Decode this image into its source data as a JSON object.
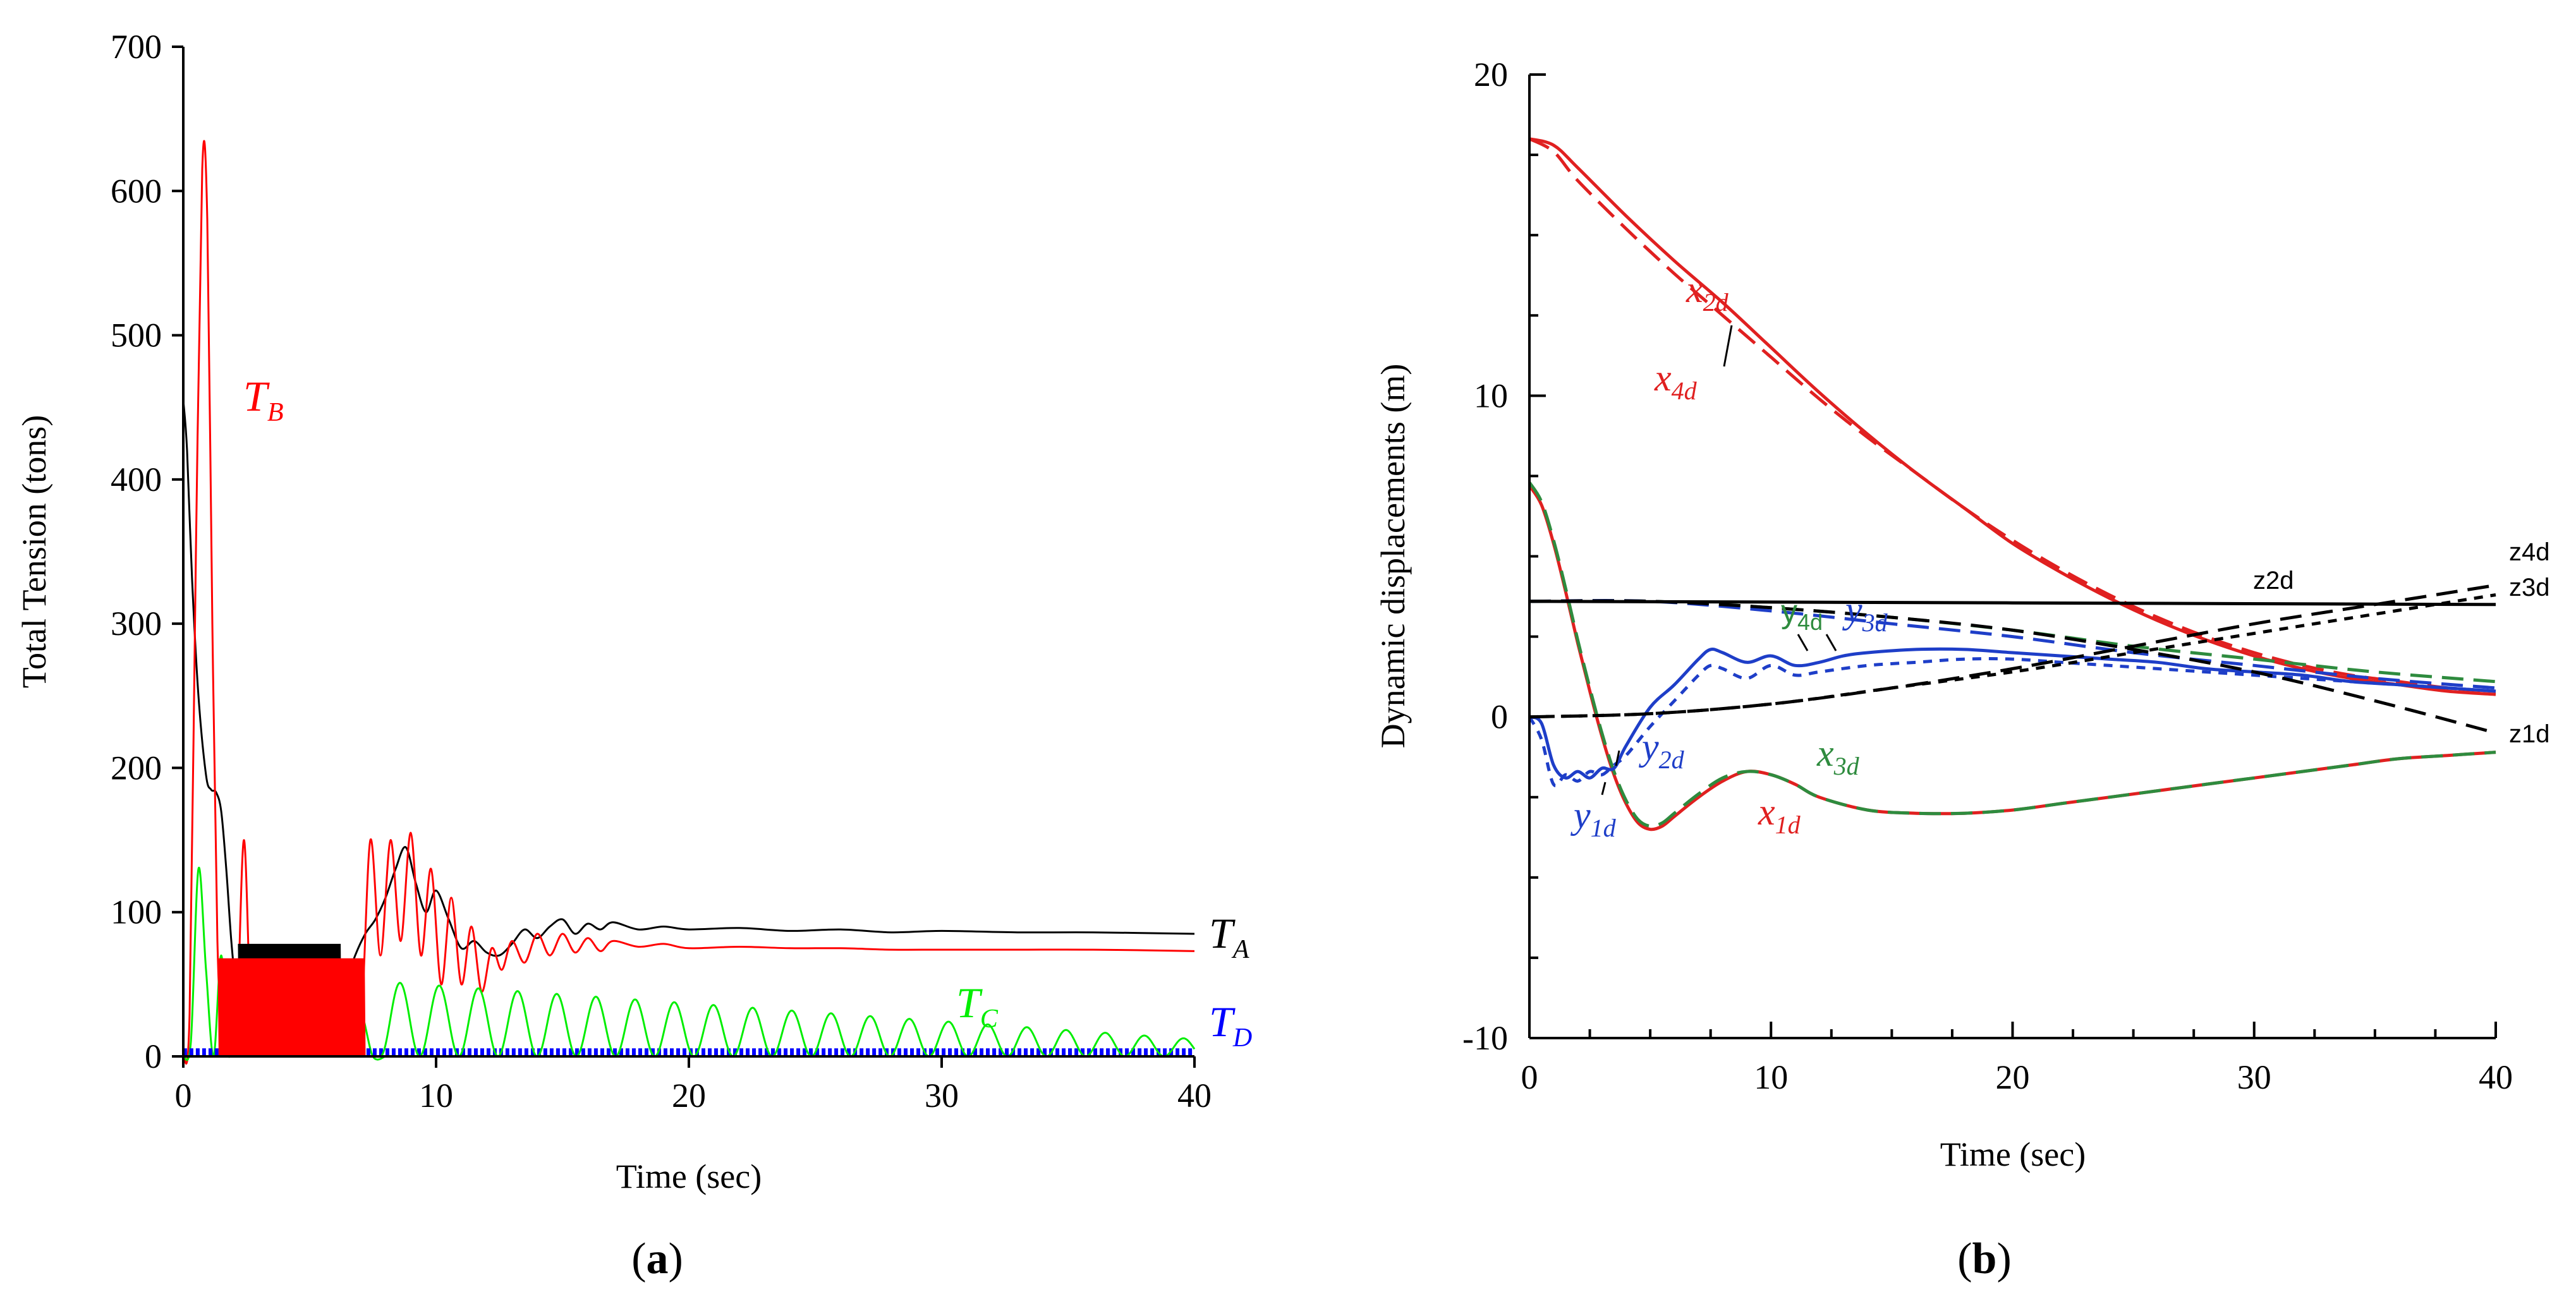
{
  "panels": [
    {
      "id": "a",
      "label_pre": "(",
      "label_letter": "a",
      "label_post": ")"
    },
    {
      "id": "b",
      "label_pre": "(",
      "label_letter": "b",
      "label_post": ")"
    }
  ],
  "chart_data": [
    {
      "type": "line",
      "panel": "a",
      "title": "",
      "xlabel": "Time (sec)",
      "ylabel": "Total Tension (tons)",
      "xlim": [
        0,
        40
      ],
      "ylim": [
        0,
        700
      ],
      "xticks": [
        0,
        10,
        20,
        30,
        40
      ],
      "yticks": [
        0,
        100,
        200,
        300,
        400,
        500,
        600,
        700
      ],
      "xtick_labels": [
        "0",
        "10",
        "20",
        "30",
        "40"
      ],
      "ytick_labels": [
        "0",
        "100",
        "200",
        "300",
        "400",
        "500",
        "600",
        "700"
      ],
      "series": [
        {
          "name": "T_A",
          "main": "T",
          "sub": "A",
          "color": "#000000",
          "x": [
            0,
            0.15,
            0.35,
            0.6,
            0.9,
            1.1,
            1.3,
            1.5,
            1.7,
            1.9,
            2.1,
            2.3,
            2.5,
            2.8,
            3.2,
            3.6,
            4.0,
            4.5,
            5.0,
            5.5,
            6.0,
            6.4,
            6.8,
            7.2,
            7.6,
            8.0,
            8.4,
            8.8,
            9.2,
            9.6,
            10.0,
            10.5,
            11.0,
            11.5,
            12.0,
            12.5,
            13.0,
            13.5,
            14.0,
            14.5,
            15.0,
            15.5,
            16.0,
            16.5,
            17.0,
            18,
            19,
            20,
            22,
            24,
            26,
            28,
            30,
            33,
            36,
            40
          ],
          "values": [
            455,
            420,
            330,
            250,
            195,
            185,
            183,
            170,
            130,
            80,
            45,
            30,
            40,
            35,
            30,
            28,
            30,
            32,
            30,
            28,
            35,
            50,
            70,
            85,
            95,
            110,
            130,
            145,
            120,
            100,
            115,
            95,
            75,
            80,
            72,
            70,
            78,
            88,
            82,
            90,
            95,
            85,
            92,
            88,
            93,
            88,
            90,
            88,
            89,
            87,
            88,
            86,
            87,
            86,
            86,
            85
          ]
        },
        {
          "name": "T_B",
          "main": "T",
          "sub": "B",
          "color": "#ff0000",
          "x": [
            0,
            0.25,
            0.5,
            0.75,
            0.95,
            1.15,
            1.35,
            1.55,
            1.8,
            2.1,
            2.4,
            2.7,
            3.0,
            3.3,
            3.7,
            4.1,
            4.5,
            5.0,
            5.5,
            6.0,
            6.5,
            7.0,
            7.4,
            7.8,
            8.2,
            8.6,
            9.0,
            9.4,
            9.8,
            10.2,
            10.6,
            11.0,
            11.4,
            11.8,
            12.2,
            12.6,
            13.0,
            13.5,
            14.0,
            14.5,
            15.0,
            15.5,
            16.0,
            16.5,
            17.0,
            18,
            19,
            20,
            22,
            24,
            26,
            28,
            30,
            33,
            36,
            40
          ],
          "values": [
            0,
            30,
            350,
            615,
            580,
            300,
            80,
            20,
            60,
            20,
            150,
            20,
            65,
            20,
            65,
            20,
            65,
            20,
            65,
            20,
            65,
            20,
            150,
            70,
            150,
            80,
            155,
            70,
            130,
            50,
            110,
            50,
            90,
            45,
            75,
            60,
            80,
            65,
            85,
            70,
            85,
            72,
            82,
            73,
            80,
            76,
            78,
            75,
            76,
            75,
            75,
            74,
            74,
            74,
            74,
            73
          ]
        },
        {
          "name": "T_C",
          "main": "T",
          "sub": "C",
          "color": "#00ee00",
          "x": [
            0,
            0.3,
            0.6,
            0.9,
            1.2,
            1.5,
            1.8,
            2.2,
            2.6,
            3.0,
            3.5,
            4.0,
            4.5,
            5.0,
            5.5,
            6.0,
            6.5,
            7.0,
            7.5,
            8.0
          ],
          "values": [
            0,
            10,
            130,
            60,
            0,
            70,
            0,
            40,
            0,
            35,
            0,
            35,
            0,
            40,
            0,
            35,
            0,
            30,
            0,
            0
          ]
        },
        {
          "name": "T_D",
          "main": "T",
          "sub": "D",
          "color": "#0000ff",
          "x": [
            0,
            40
          ],
          "values": [
            3,
            3
          ]
        }
      ],
      "annotations": {
        "T_C_envelope": {
          "start_time": 7.8,
          "end_time": 40,
          "period": 1.55,
          "start_amp": 52,
          "end_amp": 12
        },
        "dense_oscillation_T_A": {
          "start_time": 2.2,
          "end_time": 6.2,
          "peak": 78
        },
        "dense_oscillation_T_B": {
          "start_time": 1.4,
          "end_time": 7.2,
          "peak": 68
        }
      }
    },
    {
      "type": "line",
      "panel": "b",
      "title": "",
      "xlabel": "Time (sec)",
      "ylabel": "Dynamic displacements (m)",
      "xlim": [
        0,
        40
      ],
      "ylim": [
        -10,
        20
      ],
      "xticks": [
        0,
        10,
        20,
        30,
        40
      ],
      "yticks": [
        -10,
        0,
        10,
        20
      ],
      "xtick_labels": [
        "0",
        "10",
        "20",
        "30",
        "40"
      ],
      "ytick_labels": [
        "-10",
        "0",
        "10",
        "20"
      ],
      "series": [
        {
          "name": "x2d",
          "main": "x",
          "sub": "2d",
          "color": "#e02020",
          "dash": "solid",
          "x": [
            0,
            1,
            2,
            4,
            6,
            8,
            10,
            12,
            14,
            16,
            18,
            20,
            22,
            24,
            26,
            28,
            30,
            32,
            34,
            36,
            38,
            40
          ],
          "values": [
            18,
            17.8,
            17.1,
            15.6,
            14.2,
            12.9,
            11.5,
            10.1,
            8.8,
            7.6,
            6.5,
            5.4,
            4.5,
            3.7,
            3.0,
            2.4,
            1.9,
            1.5,
            1.2,
            1.0,
            0.8,
            0.7
          ]
        },
        {
          "name": "x4d",
          "main": "x",
          "sub": "4d",
          "color": "#e02020",
          "dash": "long",
          "x": [
            0,
            1,
            2,
            4,
            6,
            8,
            10,
            12,
            14,
            16,
            18,
            20,
            22,
            24,
            26,
            28,
            30,
            32,
            34,
            36,
            38,
            40
          ],
          "values": [
            18,
            17.6,
            16.7,
            15.2,
            13.8,
            12.5,
            11.2,
            9.9,
            8.7,
            7.6,
            6.5,
            5.5,
            4.6,
            3.8,
            3.1,
            2.5,
            2.0,
            1.6,
            1.3,
            1.1,
            0.9,
            0.8
          ]
        },
        {
          "name": "x1d",
          "main": "x",
          "sub": "1d",
          "color": "#e02020",
          "dash": "solid",
          "x": [
            0,
            0.5,
            1,
            1.5,
            2,
            2.5,
            3,
            3.5,
            4,
            4.5,
            5,
            5.5,
            6,
            7,
            8,
            9,
            10,
            11,
            12,
            14,
            16,
            18,
            20,
            22,
            24,
            26,
            28,
            30,
            32,
            34,
            36,
            38,
            40
          ],
          "values": [
            7.2,
            6.6,
            5.4,
            3.9,
            2.3,
            0.8,
            -0.6,
            -1.8,
            -2.7,
            -3.3,
            -3.5,
            -3.4,
            -3.1,
            -2.5,
            -2.0,
            -1.7,
            -1.8,
            -2.1,
            -2.5,
            -2.9,
            -3.0,
            -3.0,
            -2.9,
            -2.7,
            -2.5,
            -2.3,
            -2.1,
            -1.9,
            -1.7,
            -1.5,
            -1.3,
            -1.2,
            -1.1
          ]
        },
        {
          "name": "x3d",
          "main": "x",
          "sub": "3d",
          "color": "#2e8b3e",
          "dash": "long",
          "x": [
            0,
            0.5,
            1,
            1.5,
            2,
            2.5,
            3,
            3.5,
            4,
            4.5,
            5,
            5.5,
            6,
            7,
            8,
            9,
            10,
            11,
            12,
            14,
            16,
            18,
            20,
            22,
            24,
            26,
            28,
            30,
            32,
            34,
            36,
            38,
            40
          ],
          "values": [
            7.3,
            6.7,
            5.5,
            4.0,
            2.4,
            0.9,
            -0.5,
            -1.7,
            -2.6,
            -3.2,
            -3.4,
            -3.3,
            -3.0,
            -2.4,
            -1.9,
            -1.7,
            -1.8,
            -2.1,
            -2.5,
            -2.9,
            -3.0,
            -3.0,
            -2.9,
            -2.7,
            -2.5,
            -2.3,
            -2.1,
            -1.9,
            -1.7,
            -1.5,
            -1.3,
            -1.2,
            -1.1
          ]
        },
        {
          "name": "y4d",
          "main": "y",
          "sub": "4d",
          "color": "#2e8b3e",
          "dash": "long",
          "x": [
            0,
            5,
            10,
            15,
            20,
            25,
            30,
            35,
            40
          ],
          "values": [
            3.6,
            3.6,
            3.4,
            3.1,
            2.7,
            2.2,
            1.8,
            1.4,
            1.1
          ]
        },
        {
          "name": "y3d",
          "main": "y",
          "sub": "3d",
          "color": "#1e3ec8",
          "dash": "long",
          "x": [
            0,
            5,
            10,
            15,
            20,
            25,
            30,
            35,
            40
          ],
          "values": [
            3.6,
            3.6,
            3.3,
            2.9,
            2.5,
            2.0,
            1.6,
            1.2,
            0.9
          ]
        },
        {
          "name": "y2d",
          "main": "y",
          "sub": "2d",
          "color": "#1e3ec8",
          "dash": "solid",
          "x": [
            0,
            0.5,
            1,
            1.5,
            2,
            2.5,
            3,
            3.5,
            4,
            5,
            6,
            7,
            7.5,
            8,
            9,
            10,
            11,
            12,
            13,
            14,
            16,
            18,
            20,
            22,
            24,
            26,
            28,
            30,
            32,
            34,
            36,
            38,
            40
          ],
          "values": [
            0,
            -0.2,
            -1.5,
            -1.9,
            -1.7,
            -1.9,
            -1.6,
            -1.6,
            -0.9,
            0.3,
            1.0,
            1.8,
            2.1,
            2.0,
            1.7,
            1.9,
            1.6,
            1.7,
            1.9,
            2.0,
            2.1,
            2.1,
            2.0,
            1.9,
            1.8,
            1.7,
            1.5,
            1.4,
            1.3,
            1.1,
            1.0,
            0.9,
            0.8
          ]
        },
        {
          "name": "y1d",
          "main": "y",
          "sub": "1d",
          "color": "#1e3ec8",
          "dash": "short",
          "x": [
            0,
            0.5,
            1,
            1.5,
            2,
            2.5,
            3,
            3.5,
            4,
            5,
            6,
            7,
            7.5,
            8,
            9,
            10,
            11,
            12,
            14,
            16,
            18,
            20,
            22,
            24,
            26,
            28,
            30,
            32,
            34,
            36,
            38,
            40
          ],
          "values": [
            0,
            -0.7,
            -2.1,
            -1.8,
            -2.0,
            -1.7,
            -1.8,
            -1.5,
            -1.2,
            -0.3,
            0.5,
            1.3,
            1.6,
            1.5,
            1.2,
            1.6,
            1.3,
            1.4,
            1.6,
            1.7,
            1.8,
            1.8,
            1.7,
            1.6,
            1.5,
            1.4,
            1.3,
            1.2,
            1.1,
            1.0,
            0.9,
            0.8
          ]
        },
        {
          "name": "z2d",
          "main": "z2d",
          "sub": "",
          "color": "#000000",
          "dash": "solid",
          "x": [
            0,
            40
          ],
          "values": [
            3.6,
            3.5
          ]
        },
        {
          "name": "z4d",
          "main": "z4d",
          "sub": "",
          "color": "#000000",
          "dash": "long",
          "x": [
            0,
            5,
            10,
            15,
            20,
            25,
            30,
            35,
            40
          ],
          "values": [
            0,
            0.1,
            0.4,
            0.9,
            1.5,
            2.2,
            2.9,
            3.5,
            4.1
          ]
        },
        {
          "name": "z3d",
          "main": "z3d",
          "sub": "",
          "color": "#000000",
          "dash": "short",
          "x": [
            0,
            5,
            10,
            15,
            20,
            25,
            30,
            35,
            40
          ],
          "values": [
            0,
            0.1,
            0.4,
            0.9,
            1.4,
            2.0,
            2.6,
            3.2,
            3.8
          ]
        },
        {
          "name": "z1d",
          "main": "z1d",
          "sub": "",
          "color": "#000000",
          "dash": "long",
          "x": [
            0,
            5,
            10,
            15,
            20,
            25,
            30,
            35,
            40
          ],
          "values": [
            3.6,
            3.6,
            3.4,
            3.1,
            2.7,
            2.1,
            1.4,
            0.5,
            -0.5
          ]
        }
      ]
    }
  ]
}
